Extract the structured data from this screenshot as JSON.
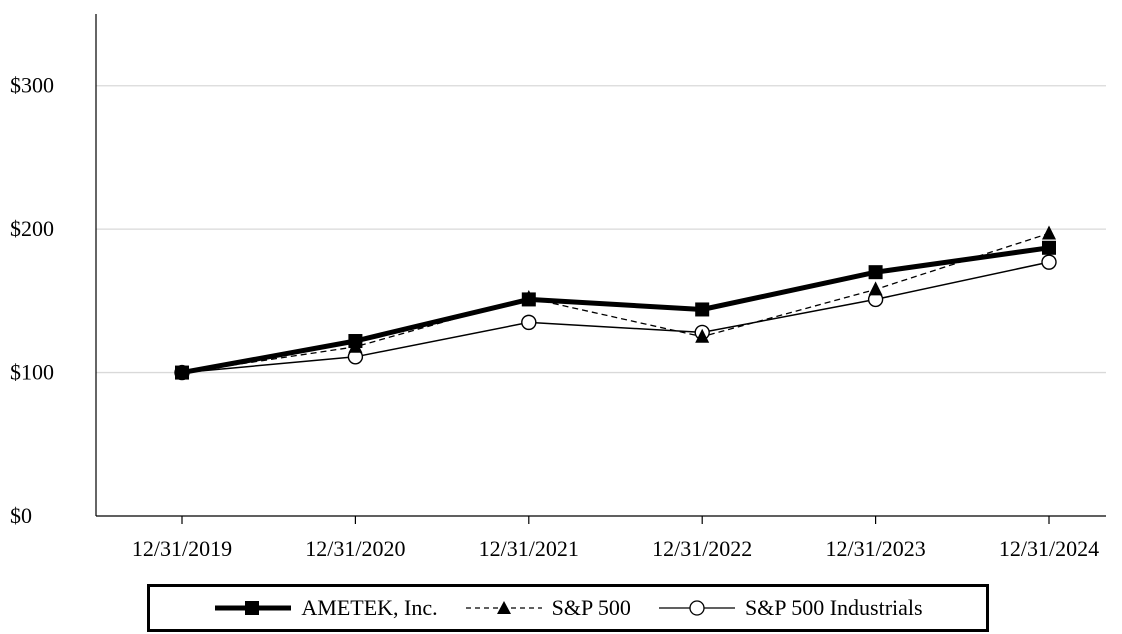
{
  "chart_data": {
    "type": "line",
    "title": "",
    "xlabel": "",
    "ylabel": "",
    "categories": [
      "12/31/2019",
      "12/31/2020",
      "12/31/2021",
      "12/31/2022",
      "12/31/2023",
      "12/31/2024"
    ],
    "y_tick_labels": [
      "$0",
      "$100",
      "$200",
      "$300"
    ],
    "y_ticks": [
      0,
      100,
      200,
      300
    ],
    "ylim": [
      0,
      350
    ],
    "grid": true,
    "legend_position": "bottom",
    "series": [
      {
        "name": "AMETEK, Inc.",
        "values": [
          100,
          122,
          151,
          144,
          170,
          187
        ],
        "marker": "square",
        "line_style": "solid-thick",
        "color": "#000000"
      },
      {
        "name": "S&P 500",
        "values": [
          100,
          118,
          152,
          125,
          158,
          197
        ],
        "marker": "triangle",
        "line_style": "dashed",
        "color": "#000000"
      },
      {
        "name": "S&P 500 Industrials",
        "values": [
          100,
          111,
          135,
          128,
          151,
          177
        ],
        "marker": "open-circle",
        "line_style": "solid-thin",
        "color": "#000000"
      }
    ]
  }
}
